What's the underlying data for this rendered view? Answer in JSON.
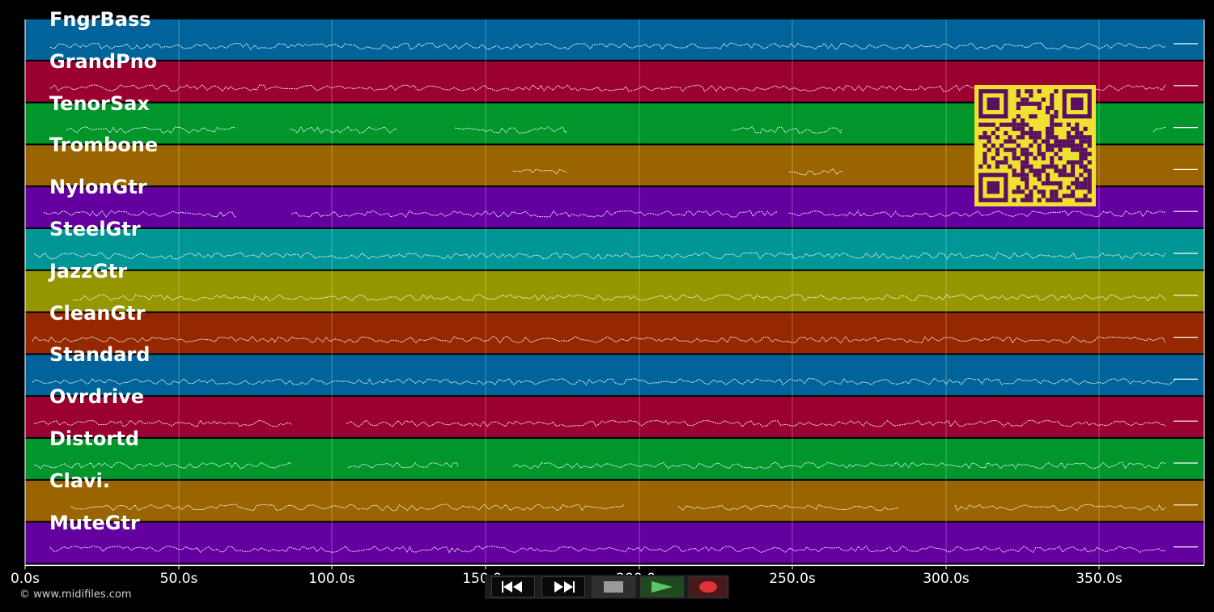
{
  "tracks": [
    {
      "name": "FngrBass",
      "color": "#00649a"
    },
    {
      "name": "GrandPno",
      "color": "#9a0030"
    },
    {
      "name": "TenorSax",
      "color": "#00962c"
    },
    {
      "name": "Trombone",
      "color": "#9a6400"
    },
    {
      "name": "NylonGtr",
      "color": "#6400a0"
    },
    {
      "name": "SteelGtr",
      "color": "#009696"
    },
    {
      "name": "JazzGtr",
      "color": "#969600"
    },
    {
      "name": "CleanGtr",
      "color": "#962800"
    },
    {
      "name": "Standard",
      "color": "#00649a"
    },
    {
      "name": "Ovrdrive",
      "color": "#9a0030"
    },
    {
      "name": "Distortd",
      "color": "#00962c"
    },
    {
      "name": "Clavi.",
      "color": "#9a6400"
    },
    {
      "name": "MuteGtr",
      "color": "#6400a0"
    }
  ],
  "timeline": {
    "ticks": [
      "0.0s",
      "50.0s",
      "100.0s",
      "150.0s",
      "200.0s",
      "250.0s",
      "300.0s",
      "350.0s"
    ]
  },
  "copyright": "© www.midifiles.com",
  "transport": {
    "rewind_icon": "rewind-icon",
    "forward_icon": "fast-forward-icon",
    "stop_icon": "stop-icon",
    "play_icon": "play-icon",
    "record_icon": "record-icon"
  },
  "qr_code": {
    "color_fg": "#5a1060",
    "color_bg": "#f0e030"
  }
}
